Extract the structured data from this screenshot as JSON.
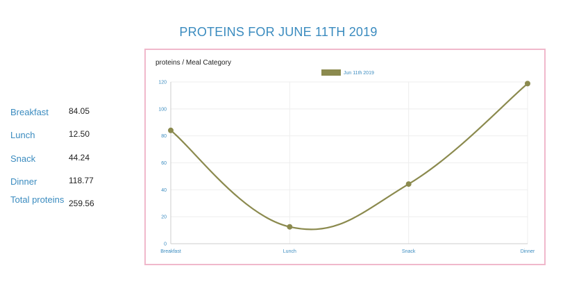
{
  "page": {
    "title": "PROTEINS FOR JUNE 11TH 2019"
  },
  "summary": {
    "rows": [
      {
        "label": "Breakfast",
        "value": "84.05"
      },
      {
        "label": "Lunch",
        "value": "12.50"
      },
      {
        "label": "Snack",
        "value": "44.24"
      },
      {
        "label": "Dinner",
        "value": "118.77"
      },
      {
        "label": "Total proteins",
        "value": "259.56"
      }
    ]
  },
  "colors": {
    "title": "#3a8bbf",
    "label": "#3a8bbf",
    "panel_border": "#f0b8cb",
    "series": "#8b8a4e",
    "grid": "#eeeeee"
  },
  "chart_data": {
    "type": "line",
    "title": "proteins / Meal Category",
    "categories": [
      "Breakfast",
      "Lunch",
      "Snack",
      "Dinner"
    ],
    "series": [
      {
        "name": "Jun 11th 2019",
        "values": [
          84.05,
          12.5,
          44.24,
          118.77
        ]
      }
    ],
    "yticks": [
      "0",
      "20",
      "40",
      "60",
      "80",
      "100",
      "120"
    ],
    "ylim": [
      0,
      120
    ],
    "grid": true,
    "legend_position": "top-center",
    "curve": "smooth"
  }
}
